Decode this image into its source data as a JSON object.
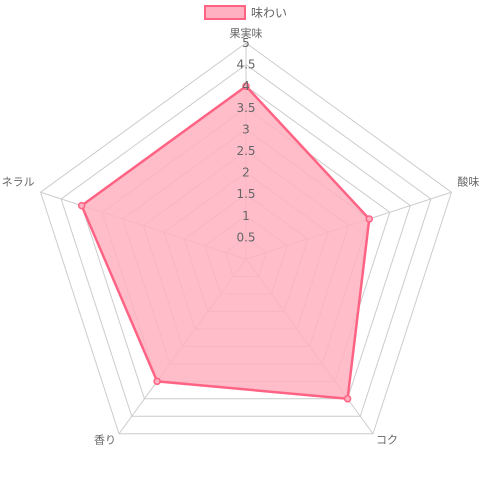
{
  "chart_data": {
    "type": "radar",
    "axes": [
      "果実味",
      "酸味",
      "コク",
      "香り",
      "ミネラル"
    ],
    "series": [
      {
        "name": "味わい",
        "values": [
          4,
          3,
          4,
          3.5,
          4
        ],
        "fill": "#ffb1c1",
        "stroke": "#ff6384"
      }
    ],
    "rlim": [
      0,
      5
    ],
    "ticks": [
      "0.5",
      "1",
      "1.5",
      "2",
      "2.5",
      "3",
      "3.5",
      "4",
      "4.5",
      "5"
    ],
    "tick_values": [
      0.5,
      1,
      1.5,
      2,
      2.5,
      3,
      3.5,
      4,
      4.5,
      5
    ],
    "grid_color": "#cccccc",
    "legend": "top"
  }
}
